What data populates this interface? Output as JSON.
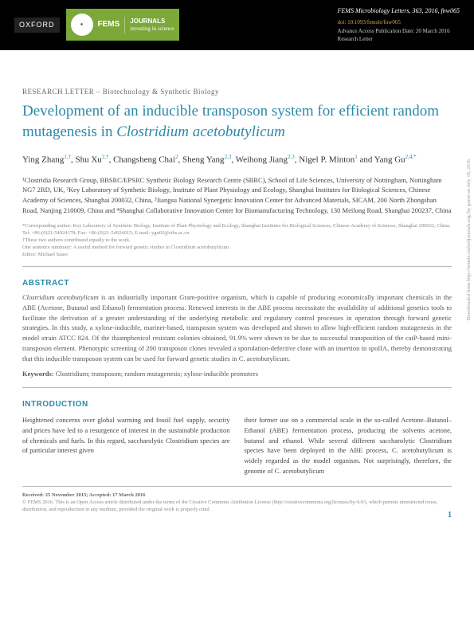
{
  "header": {
    "publisher_logo": "OXFORD",
    "fems_logo": "FEMS",
    "fems_tagline_top": "JOURNALS",
    "fems_tagline_bottom": "investing in science",
    "bibline": "FEMS Microbiology Letters, 363, 2016, fnw065",
    "doi": "doi: 10.1093/femsle/fnw065",
    "advance": "Advance Access Publication Date: 20 March 2016",
    "type": "Research Letter"
  },
  "category": "RESEARCH LETTER – Biotechnology & Synthetic Biology",
  "title_plain": "Development of an inducible transposon system for efficient random mutagenesis in ",
  "title_em": "Clostridium acetobutylicum",
  "authors_html": "Ying Zhang<sup>1,†</sup>, Shu Xu<sup>2,†</sup>, Changsheng Chai<sup>2</sup>, Sheng Yang<sup>2,3</sup>, Weihong Jiang<sup>2,3</sup>, Nigel P. Minton<sup>1</sup> and Yang Gu<sup>2,4,*</sup>",
  "affiliations": "¹Clostridia Research Group, BBSRC/EPSRC Synthetic Biology Research Centre (SBRC), School of Life Sciences, University of Nottingham, Nottingham NG7 2RD, UK, ²Key Laboratory of Synthetic Biology, Institute of Plant Physiology and Ecology, Shanghai Institutes for Biological Sciences, Chinese Academy of Sciences, Shanghai 200032, China, ³Jiangsu National Synergetic Innovation Center for Advanced Materials, SICAM, 200 North Zhongshan Road, Nanjing 210009, China and ⁴Shanghai Collaborative Innovation Center for Biomanufacturing Technology, 130 Meilong Road, Shanghai 200237, China",
  "correspondence": "*Corresponding author: Key Laboratory of Synthetic Biology, Institute of Plant Physiology and Ecology, Shanghai Institutes for Biological Sciences, Chinese Academy of Sciences, Shanghai 200032, China. Tel: +86-(0)21-54924178; Fax: +86-(0)21-54924015; E-mail: ygu02@sibs.ac.cn\n†These two authors contributed equally to the work.\nOne sentence summary: A useful method for forward genetic studies in Clostridium acetobutylicum.\nEditor: Michael Sauer",
  "abstract_head": "ABSTRACT",
  "abstract": "Clostridium acetobutylicum is an industrially important Gram-positive organism, which is capable of producing economically important chemicals in the ABE (Acetone, Butanol and Ethanol) fermentation process. Renewed interests in the ABE process necessitate the availability of additional genetics tools to facilitate the derivation of a greater understanding of the underlying metabolic and regulatory control processes in operation through forward genetic strategies. In this study, a xylose-inducible, mariner-based, transposon system was developed and shown to allow high-efficient random mutagenesis in the model strain ATCC 824. Of the thiamphenicol resistant colonies obtained, 91.9% were shown to be due to successful transposition of the catP-based mini-transposon element. Phenotypic screening of 200 transposon clones revealed a sporulation-defective clone with an insertion in spoIIA, thereby demonstrating that this inducible transposon system can be used for forward genetic studies in C. acetobutylicum.",
  "keywords_label": "Keywords:",
  "keywords": " Clostridium; transposon; random mutagenesis; xylose-inducible promoters",
  "intro_head": "INTRODUCTION",
  "intro_col1": "Heightened concerns over global warming and fossil fuel supply, security and prices have led to a resurgence of interest in the sustainable production of chemicals and fuels. In this regard, saccharolytic Clostridium species are of particular interest given",
  "intro_col2": "their former use on a commercial scale in the so-called Acetone–Butanol–Ethanol (ABE) fermentation process, producing the solvents acetone, butanol and ethanol. While several different saccharolytic Clostridium species have been deployed in the ABE process, C. acetobutylicum is widely regarded as the model organism. Not surprisingly, therefore, the genome of C. acetobutylicum",
  "footer": {
    "received": "Received: 25 November 2015; Accepted: 17 March 2016",
    "copyright": "© FEMS 2016. This is an Open Access article distributed under the terms of the Creative Commons Attribution License (http://creativecommons.org/licenses/by/4.0/), which permits unrestricted reuse, distribution, and reproduction in any medium, provided the original work is properly cited.",
    "pagenum": "1"
  },
  "sidenote": "Downloaded from http://femsle.oxfordjournals.org/ by guest on July 18, 2016",
  "colors": {
    "brand_teal": "#2a8aa8",
    "fems_green": "#7ba838",
    "doi_gold": "#d4a848"
  }
}
